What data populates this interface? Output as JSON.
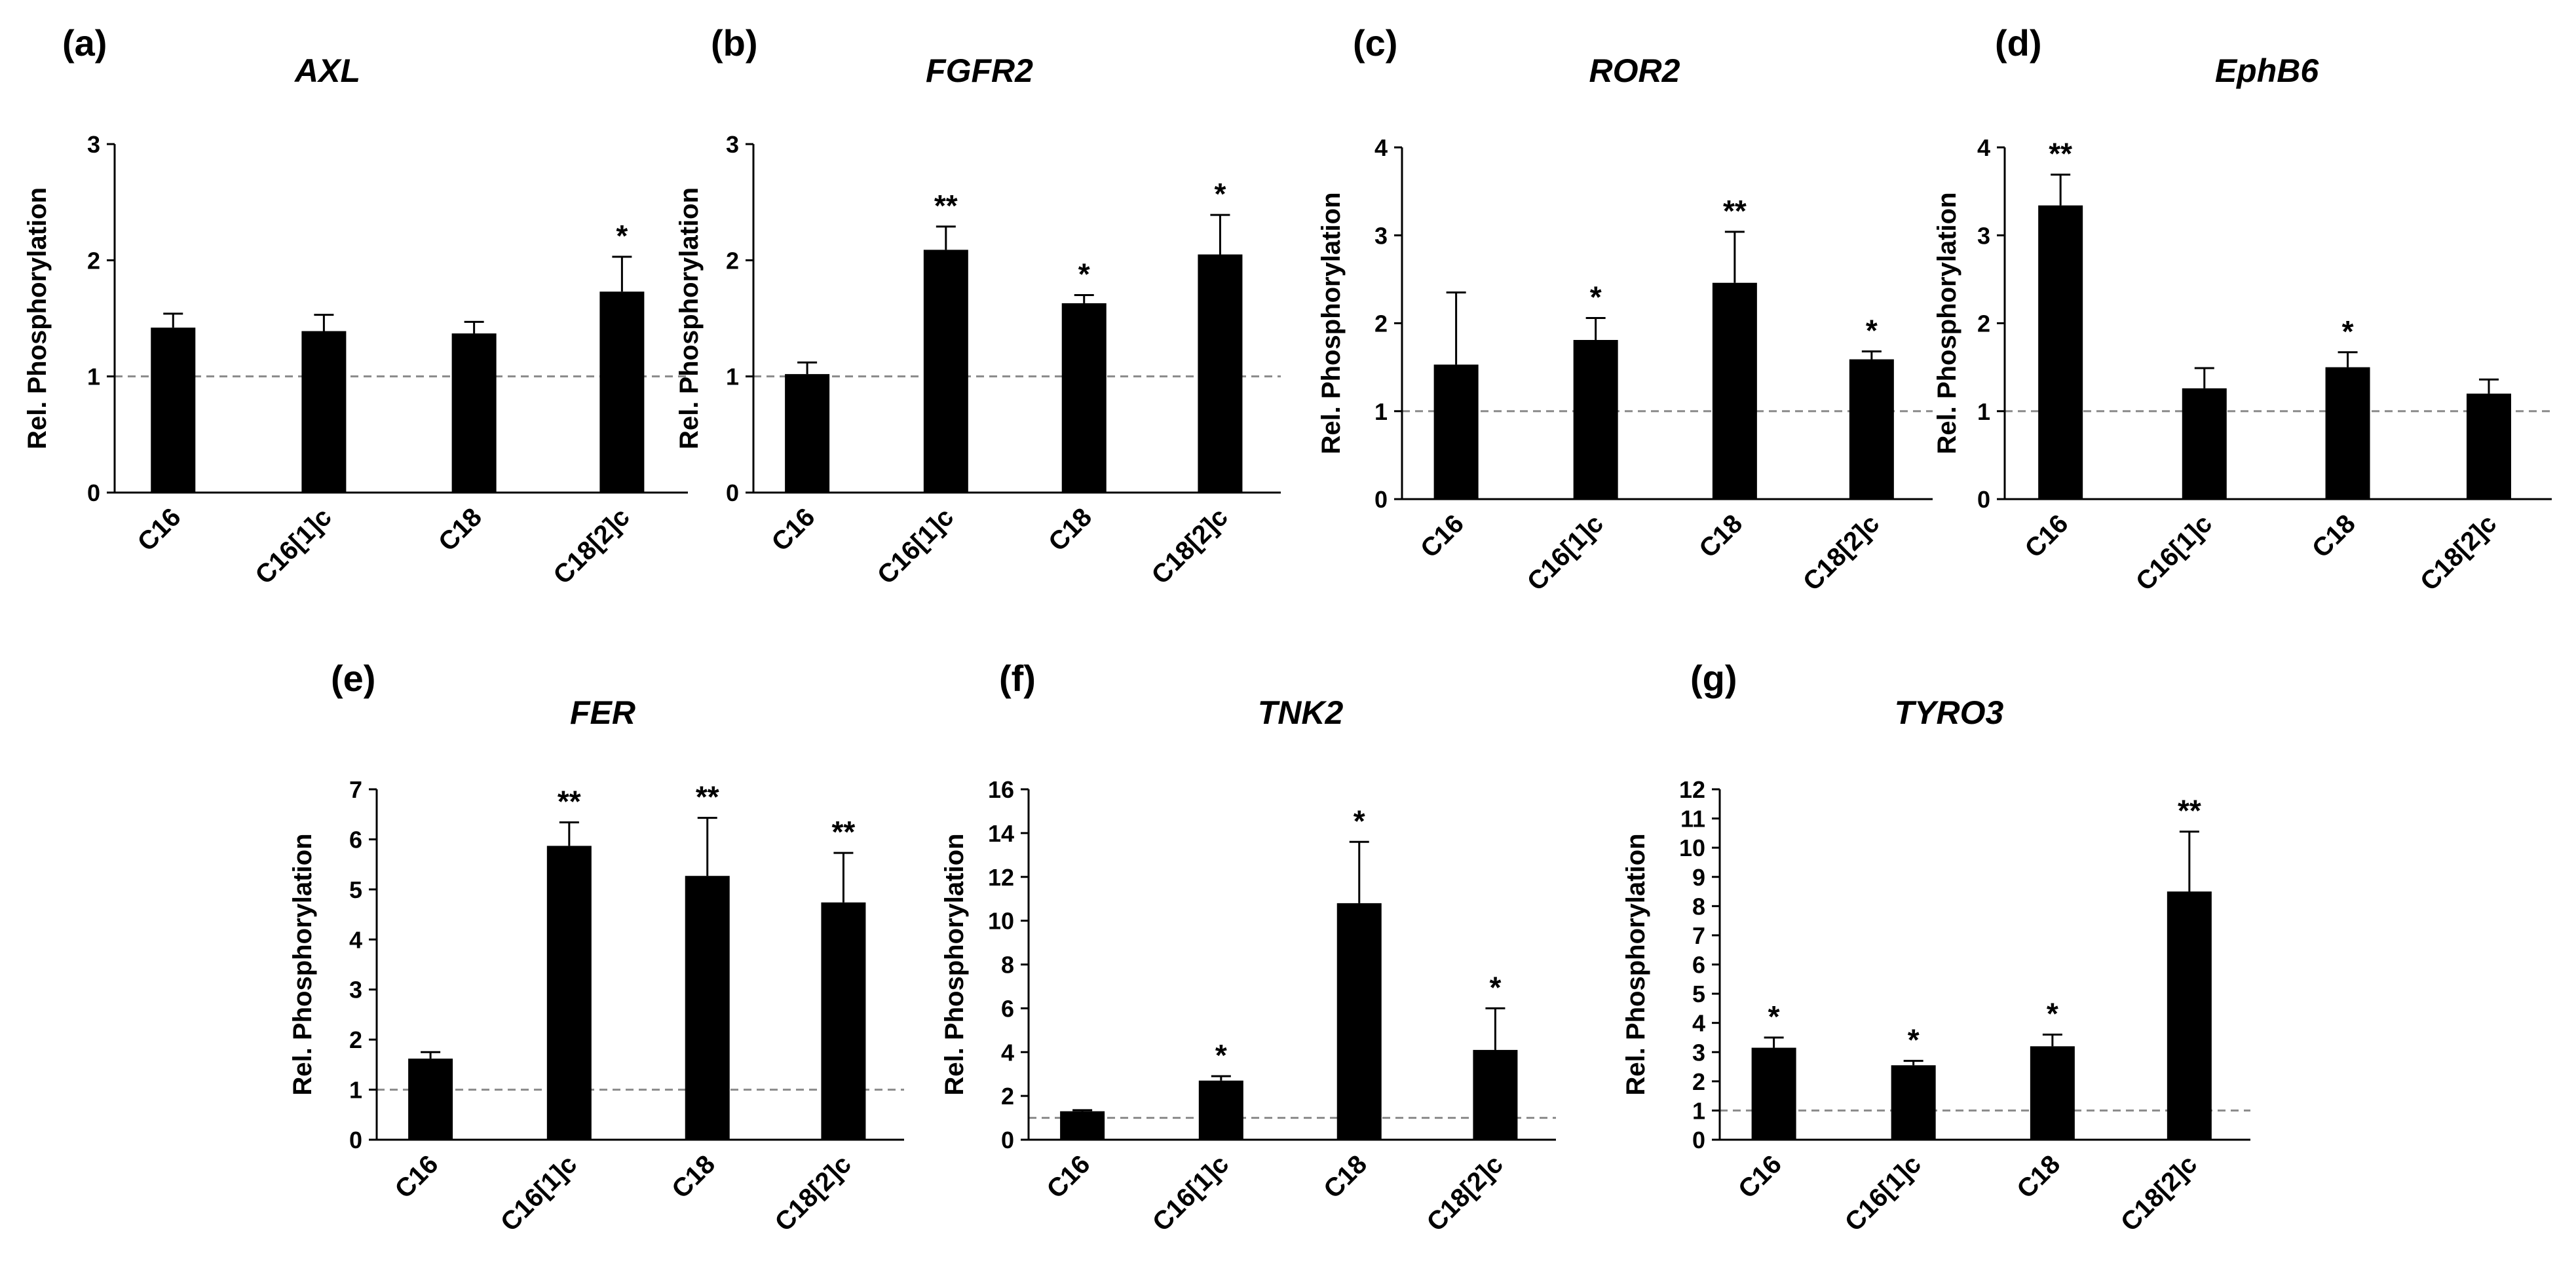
{
  "chart_data": [
    {
      "type": "bar",
      "panel": "(a)",
      "title": "AXL",
      "ylabel": "Rel. Phosphorylation",
      "xlabel": "",
      "categories": [
        "C16",
        "C16[1]c",
        "C18",
        "C18[2]c"
      ],
      "values": [
        1.42,
        1.39,
        1.37,
        1.73
      ],
      "errors": [
        0.12,
        0.14,
        0.1,
        0.3
      ],
      "significance": [
        "",
        "",
        "",
        "*"
      ],
      "ylim": [
        0,
        3
      ],
      "yticks": [
        "0",
        "1",
        "2",
        "3"
      ],
      "reference_line": 1
    },
    {
      "type": "bar",
      "panel": "(b)",
      "title": "FGFR2",
      "ylabel": "Rel. Phosphorylation",
      "xlabel": "",
      "categories": [
        "C16",
        "C16[1]c",
        "C18",
        "C18[2]c"
      ],
      "values": [
        1.02,
        2.09,
        1.63,
        2.05
      ],
      "errors": [
        0.1,
        0.2,
        0.07,
        0.34
      ],
      "significance": [
        "",
        "**",
        "*",
        "*"
      ],
      "ylim": [
        0,
        3
      ],
      "yticks": [
        "0",
        "1",
        "2",
        "3"
      ],
      "reference_line": 1
    },
    {
      "type": "bar",
      "panel": "(c)",
      "title": "ROR2",
      "ylabel": "Rel. Phosphorylation",
      "xlabel": "",
      "categories": [
        "C16",
        "C16[1]c",
        "C18",
        "C18[2]c"
      ],
      "values": [
        1.53,
        1.81,
        2.46,
        1.59
      ],
      "errors": [
        0.82,
        0.25,
        0.58,
        0.09
      ],
      "significance": [
        "",
        "*",
        "**",
        "*"
      ],
      "ylim": [
        0,
        4
      ],
      "yticks": [
        "0",
        "1",
        "2",
        "3",
        "4"
      ],
      "reference_line": 1
    },
    {
      "type": "bar",
      "panel": "(d)",
      "title": "EphB6",
      "ylabel": "Rel. Phosphorylation",
      "xlabel": "",
      "categories": [
        "C16",
        "C16[1]c",
        "C18",
        "C18[2]c"
      ],
      "values": [
        3.34,
        1.26,
        1.5,
        1.2
      ],
      "errors": [
        0.35,
        0.23,
        0.17,
        0.16
      ],
      "significance": [
        "**",
        "",
        "*",
        ""
      ],
      "ylim": [
        0,
        4
      ],
      "yticks": [
        "0",
        "1",
        "2",
        "3",
        "4"
      ],
      "reference_line": 1
    },
    {
      "type": "bar",
      "panel": "(e)",
      "title": "FER",
      "ylabel": "Rel. Phosphorylation",
      "xlabel": "",
      "categories": [
        "C16",
        "C16[1]c",
        "C18",
        "C18[2]c"
      ],
      "values": [
        1.62,
        5.87,
        5.27,
        4.74
      ],
      "errors": [
        0.13,
        0.47,
        1.16,
        0.99
      ],
      "significance": [
        "",
        "**",
        "**",
        "**"
      ],
      "ylim": [
        0,
        7
      ],
      "yticks": [
        "0",
        "1",
        "2",
        "3",
        "4",
        "5",
        "6",
        "7"
      ],
      "reference_line": 1
    },
    {
      "type": "bar",
      "panel": "(f)",
      "title": "TNK2",
      "ylabel": "Rel. Phosphorylation",
      "xlabel": "",
      "categories": [
        "C16",
        "C16[1]c",
        "C18",
        "C18[2]c"
      ],
      "values": [
        1.3,
        2.7,
        10.8,
        4.1
      ],
      "errors": [
        0.05,
        0.2,
        2.8,
        1.9
      ],
      "significance": [
        "",
        "*",
        "*",
        "*"
      ],
      "ylim": [
        0,
        16
      ],
      "yticks": [
        "0",
        "2",
        "4",
        "6",
        "8",
        "10",
        "12",
        "14",
        "16"
      ],
      "reference_line": 1
    },
    {
      "type": "bar",
      "panel": "(g)",
      "title": "TYRO3",
      "ylabel": "Rel. Phosphorylation",
      "xlabel": "",
      "categories": [
        "C16",
        "C16[1]c",
        "C18",
        "C18[2]c"
      ],
      "values": [
        3.15,
        2.55,
        3.2,
        8.5
      ],
      "errors": [
        0.35,
        0.15,
        0.4,
        2.05
      ],
      "significance": [
        "*",
        "*",
        "*",
        "**"
      ],
      "ylim": [
        0,
        12
      ],
      "yticks": [
        "0",
        "1",
        "2",
        "3",
        "4",
        "5",
        "6",
        "7",
        "8",
        "9",
        "10",
        "11",
        "12"
      ],
      "reference_line": 1
    }
  ]
}
